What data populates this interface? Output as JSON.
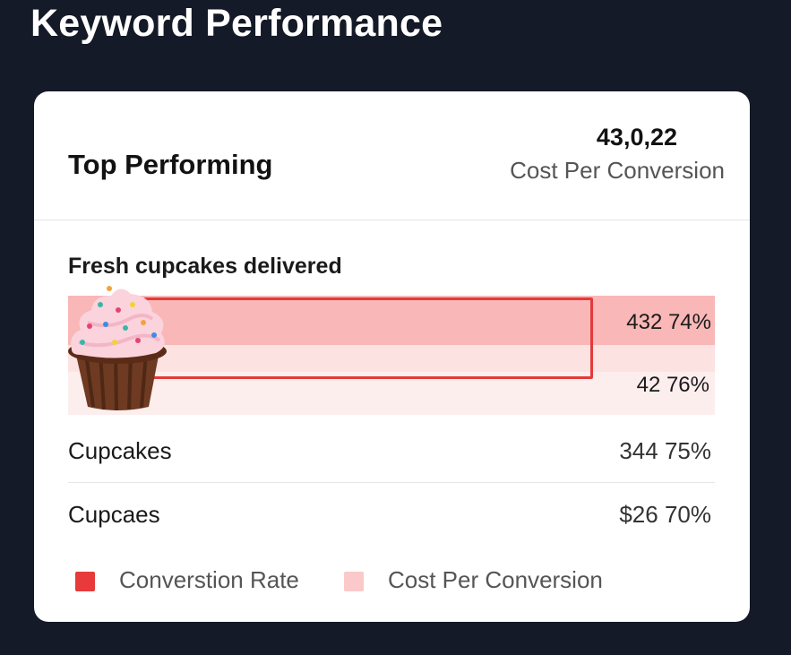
{
  "page": {
    "title": "Keyword Performance"
  },
  "card": {
    "section_title": "Top Performing",
    "metric_value": "43,0,22",
    "metric_label": "Cost Per Conversion"
  },
  "featured_keyword": {
    "label": "Fresh cupcakes delivered",
    "icon": "cupcake-icon",
    "values": [
      "432 74%",
      "42 76%"
    ]
  },
  "rows": [
    {
      "label": "Cupcakes",
      "value": "344 75%"
    },
    {
      "label": "Cupcaes",
      "value": "$26 70%"
    }
  ],
  "legend": [
    {
      "label": "Converstion Rate",
      "color": "#e83a3a"
    },
    {
      "label": "Cost Per Conversion",
      "color": "#fbc9c9"
    }
  ],
  "colors": {
    "background": "#141a27",
    "card": "#ffffff",
    "bar_highlight": "#f9b7b7",
    "bar_light": "#fdeeee",
    "accent_red": "#e43a3a"
  }
}
